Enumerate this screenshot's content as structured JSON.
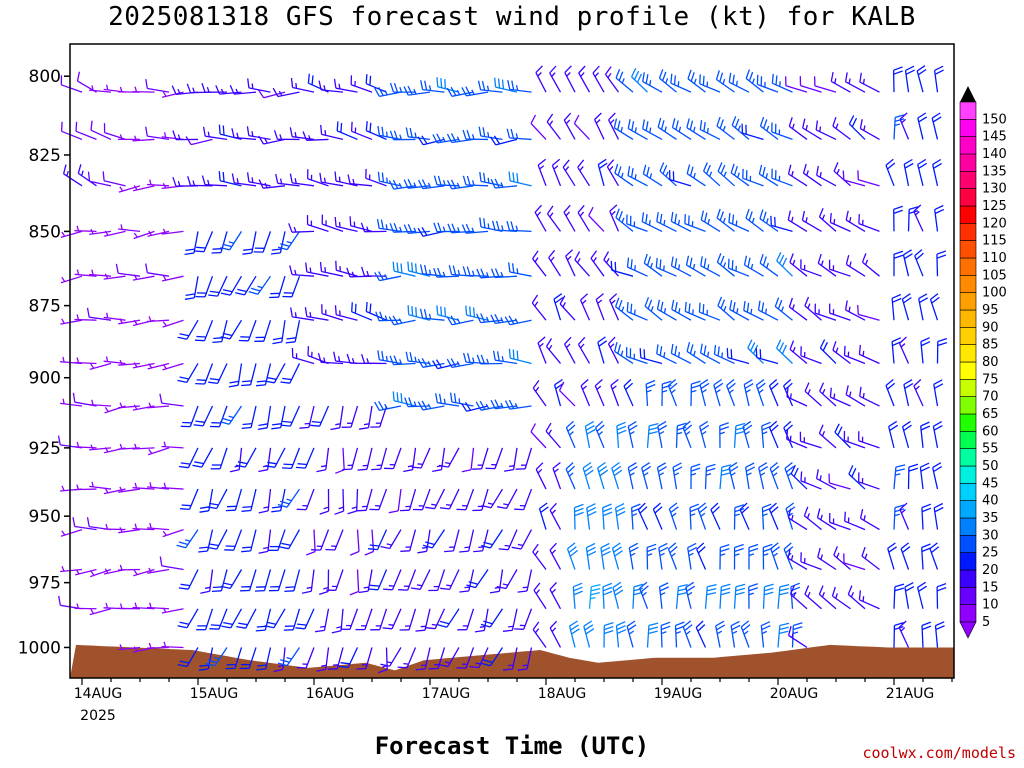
{
  "chart_data": {
    "type": "wind-barb",
    "title": "2025081318 GFS forecast wind profile (kt) for KALB",
    "xlabel": "Forecast Time (UTC)",
    "ylabel": "",
    "credit": "coolwx.com/models",
    "x_tick_labels": [
      "14AUG",
      "15AUG",
      "16AUG",
      "17AUG",
      "18AUG",
      "19AUG",
      "20AUG",
      "21AUG"
    ],
    "x_subtitle": "2025",
    "y_tick_labels": [
      "800",
      "825",
      "850",
      "875",
      "900",
      "925",
      "950",
      "975",
      "1000"
    ],
    "y_axis": {
      "scale": "log-pressure",
      "range": [
        790,
        1012
      ],
      "inverted": true
    },
    "time_range_hours": [
      0,
      180
    ],
    "time_step_hours": 3,
    "pressure_levels_hpa": [
      790,
      805,
      820,
      835,
      850,
      865,
      880,
      895,
      910,
      925,
      940,
      955,
      970,
      985,
      1000
    ],
    "colorbar": {
      "labels": [
        "5",
        "10",
        "15",
        "20",
        "25",
        "30",
        "35",
        "40",
        "45",
        "50",
        "55",
        "60",
        "65",
        "70",
        "75",
        "80",
        "85",
        "90",
        "95",
        "100",
        "105",
        "110",
        "115",
        "120",
        "125",
        "130",
        "135",
        "140",
        "145",
        "150"
      ],
      "colors": [
        "#8f00ff",
        "#6a00ff",
        "#3c00ff",
        "#0018ff",
        "#0050ff",
        "#0080ff",
        "#00a8ff",
        "#00d0ff",
        "#00f0e0",
        "#00ffa0",
        "#00ff50",
        "#20ff00",
        "#80ff00",
        "#c8ff00",
        "#ffff00",
        "#ffe800",
        "#ffd000",
        "#ffb800",
        "#ffa000",
        "#ff8a00",
        "#ff7000",
        "#ff5000",
        "#ff3000",
        "#ff0000",
        "#ff0040",
        "#ff0070",
        "#ff00a0",
        "#ff00c8",
        "#ff00f0",
        "#ff40ff"
      ]
    },
    "terrain_color": "#a0522d",
    "terrain_surface_pressure": [
      {
        "x": 0,
        "p": 999
      },
      {
        "x": 12,
        "p": 1000
      },
      {
        "x": 24,
        "p": 1001
      },
      {
        "x": 36,
        "p": 1005
      },
      {
        "x": 48,
        "p": 1008
      },
      {
        "x": 60,
        "p": 1006
      },
      {
        "x": 66,
        "p": 1009
      },
      {
        "x": 72,
        "p": 1005
      },
      {
        "x": 84,
        "p": 1003
      },
      {
        "x": 96,
        "p": 1001
      },
      {
        "x": 102,
        "p": 1004
      },
      {
        "x": 108,
        "p": 1006
      },
      {
        "x": 120,
        "p": 1004
      },
      {
        "x": 132,
        "p": 1004
      },
      {
        "x": 144,
        "p": 1002
      },
      {
        "x": 156,
        "p": 999
      },
      {
        "x": 168,
        "p": 1000
      },
      {
        "x": 180,
        "p": 1000
      }
    ],
    "wind_regimes": [
      {
        "t": [
          0,
          24
        ],
        "p": [
          790,
          1012
        ],
        "speed": 5,
        "dir": 265
      },
      {
        "t": [
          0,
          12
        ],
        "p": [
          790,
          850
        ],
        "speed": 10,
        "dir": 290
      },
      {
        "t": [
          24,
          48
        ],
        "p": [
          790,
          840
        ],
        "speed": 15,
        "dir": 270
      },
      {
        "t": [
          24,
          48
        ],
        "p": [
          840,
          1012
        ],
        "speed": 20,
        "dir": 200
      },
      {
        "t": [
          48,
          66
        ],
        "p": [
          790,
          900
        ],
        "speed": 15,
        "dir": 280
      },
      {
        "t": [
          48,
          66
        ],
        "p": [
          900,
          1012
        ],
        "speed": 15,
        "dir": 190
      },
      {
        "t": [
          66,
          96
        ],
        "p": [
          790,
          920
        ],
        "speed": 25,
        "dir": 270
      },
      {
        "t": [
          66,
          96
        ],
        "p": [
          920,
          1012
        ],
        "speed": 15,
        "dir": 200
      },
      {
        "t": [
          96,
          114
        ],
        "p": [
          790,
          1012
        ],
        "speed": 15,
        "dir": 330
      },
      {
        "t": [
          100,
          114
        ],
        "p": [
          920,
          1012
        ],
        "speed": 30,
        "dir": 350
      },
      {
        "t": [
          114,
          150
        ],
        "p": [
          790,
          900
        ],
        "speed": 25,
        "dir": 300
      },
      {
        "t": [
          114,
          150
        ],
        "p": [
          900,
          1012
        ],
        "speed": 25,
        "dir": 350
      },
      {
        "t": [
          150,
          168
        ],
        "p": [
          790,
          1012
        ],
        "speed": 15,
        "dir": 300
      },
      {
        "t": [
          168,
          180
        ],
        "p": [
          790,
          1012
        ],
        "speed": 20,
        "dir": 350
      }
    ]
  }
}
